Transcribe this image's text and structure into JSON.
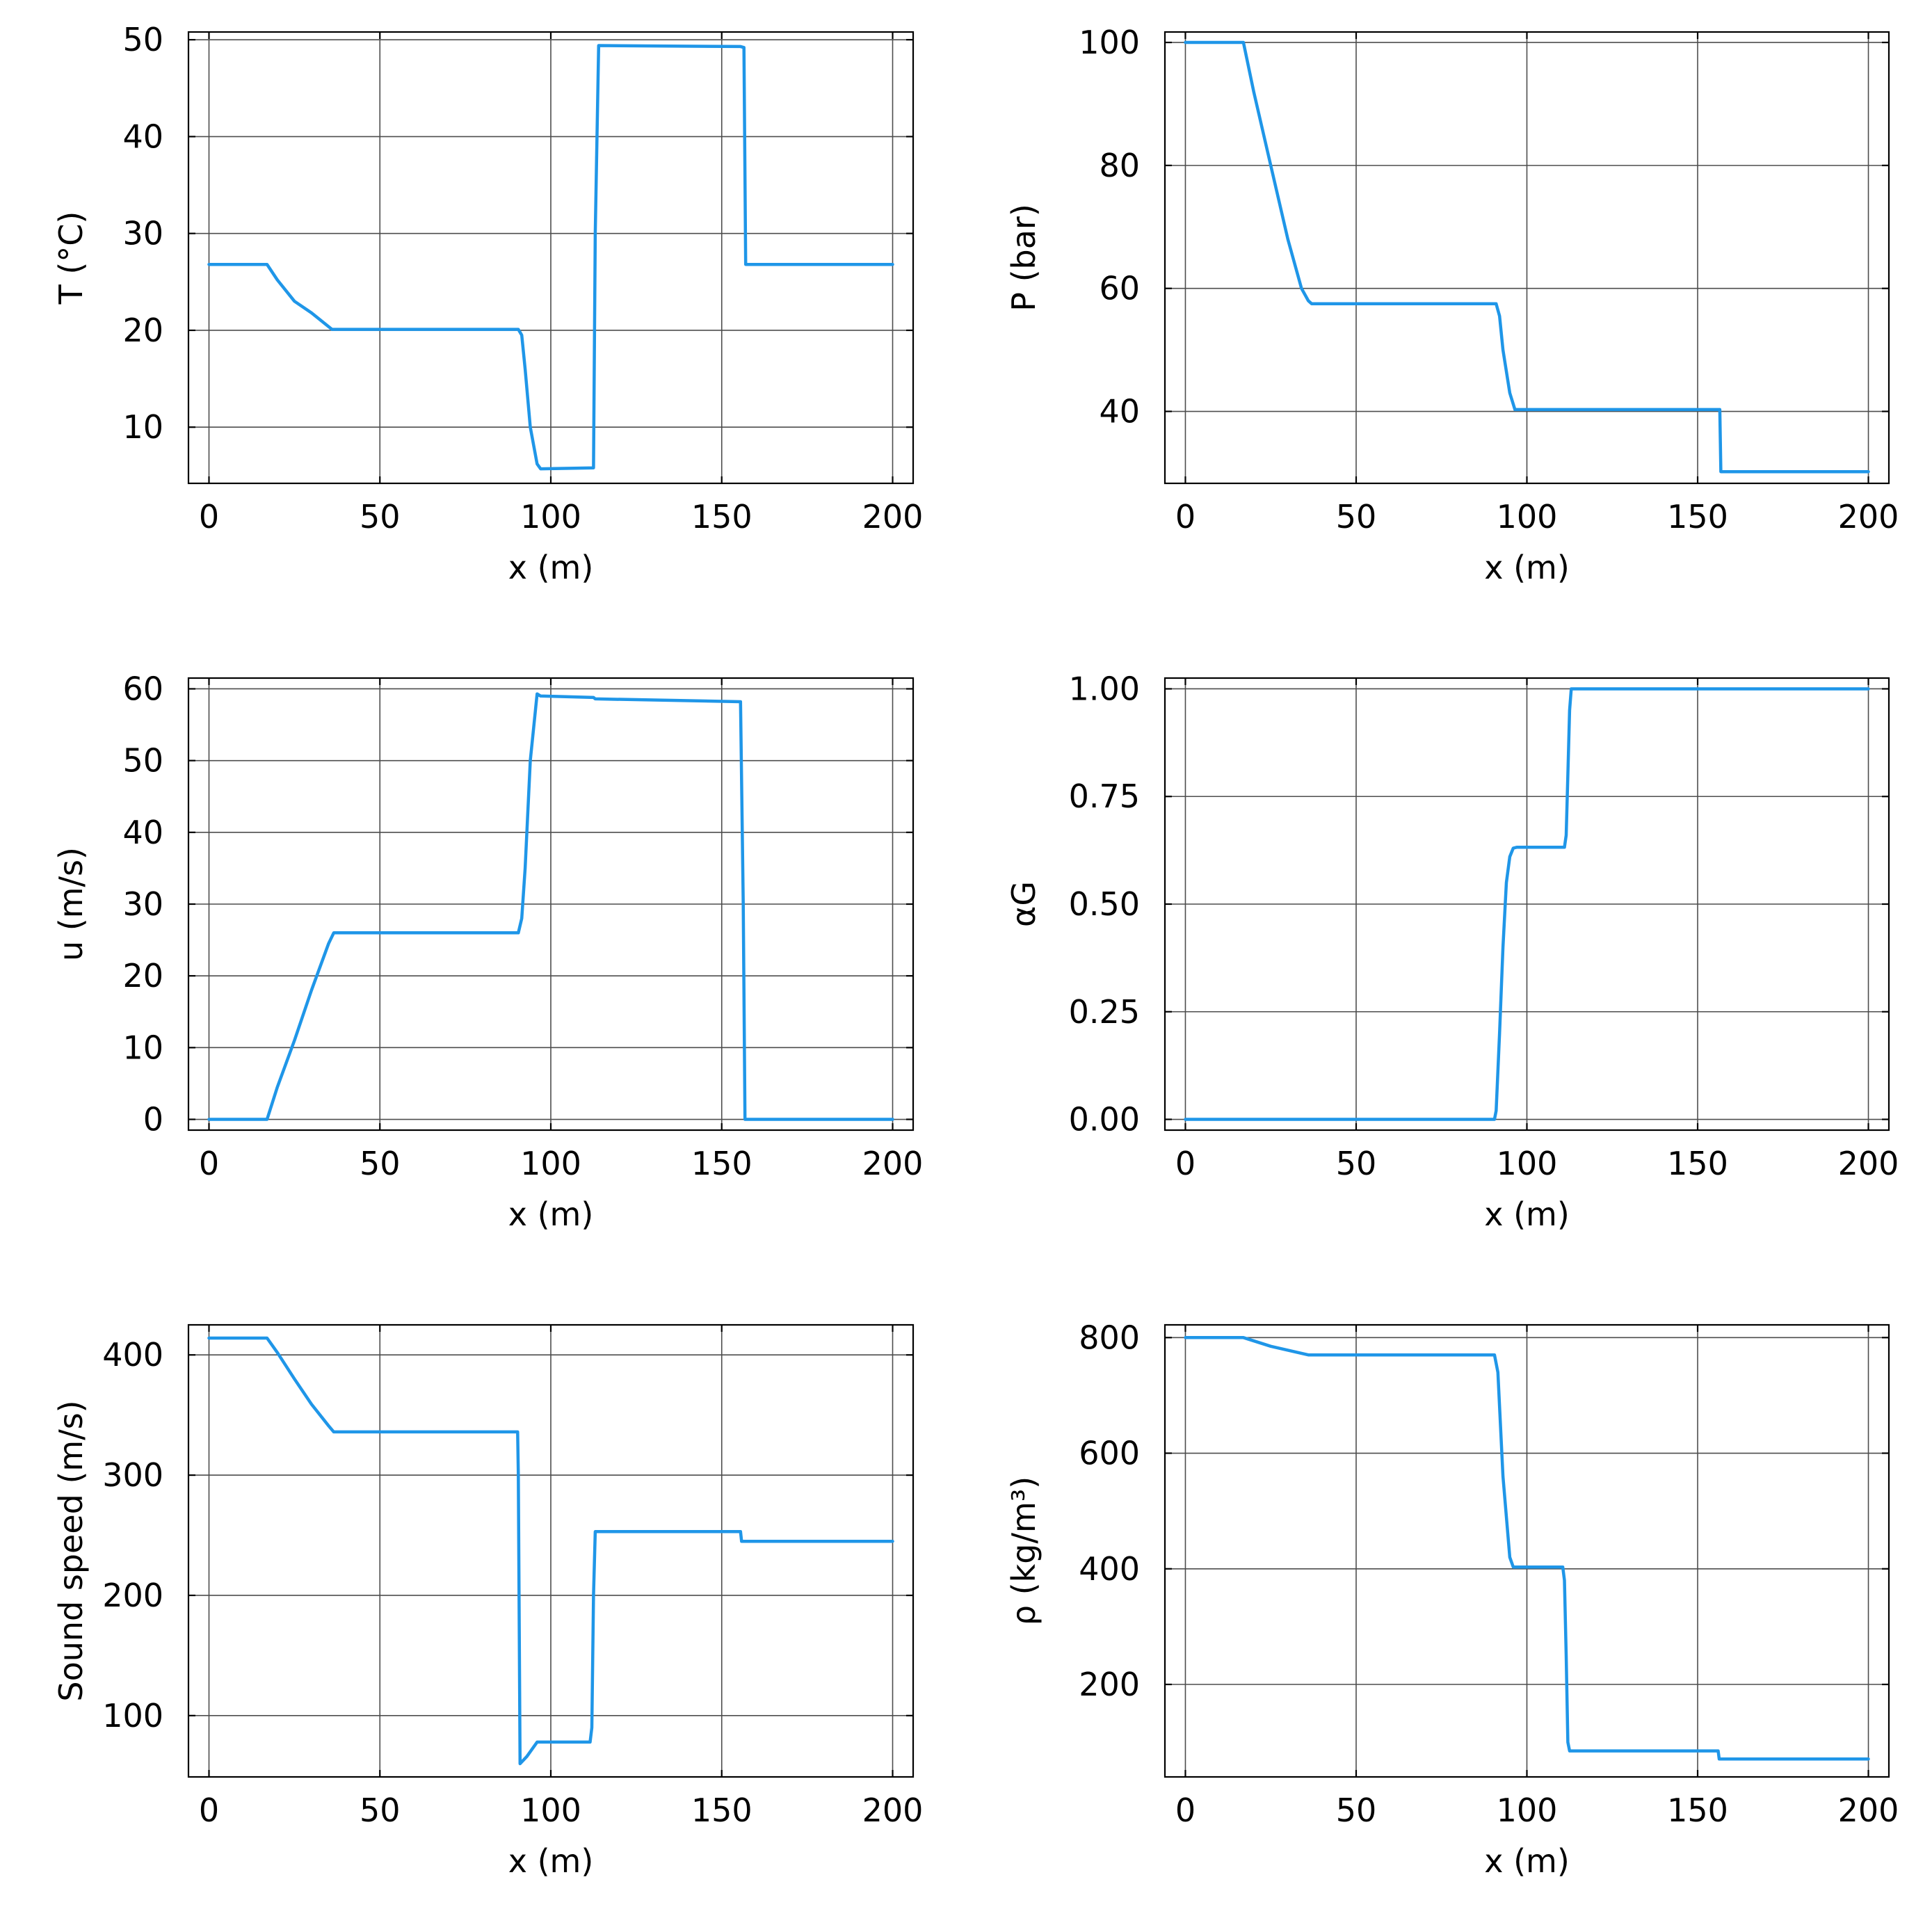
{
  "chart_data": [
    {
      "type": "line",
      "xlabel": "x (m)",
      "ylabel": "T (°C)",
      "xlim": [
        -6,
        206
      ],
      "ylim": [
        4.2,
        50.8
      ],
      "xticks": [
        0,
        50,
        100,
        150,
        200
      ],
      "xtick_labels": [
        "0",
        "50",
        "100",
        "150",
        "200"
      ],
      "yticks": [
        10,
        20,
        30,
        40,
        50
      ],
      "ytick_labels": [
        "10",
        "20",
        "30",
        "40",
        "50"
      ],
      "grid": true,
      "legend": "none",
      "series": [
        {
          "color": "#1f96e8",
          "x": [
            0,
            17,
            20,
            25,
            30,
            36,
            90.5,
            91.5,
            92.5,
            94,
            96,
            97,
            112.5,
            113,
            114,
            155.5,
            156.5,
            157,
            200
          ],
          "y": [
            26.8,
            26.8,
            25.2,
            23.0,
            21.8,
            20.1,
            20.1,
            19.5,
            16,
            10,
            6.2,
            5.7,
            5.8,
            30,
            49.4,
            49.3,
            49.2,
            26.8,
            26.8
          ]
        }
      ]
    },
    {
      "type": "line",
      "xlabel": "x (m)",
      "ylabel": "P (bar)",
      "xlim": [
        -6,
        206
      ],
      "ylim": [
        28.3,
        101.7
      ],
      "xticks": [
        0,
        50,
        100,
        150,
        200
      ],
      "xtick_labels": [
        "0",
        "50",
        "100",
        "150",
        "200"
      ],
      "yticks": [
        40,
        60,
        80,
        100
      ],
      "ytick_labels": [
        "40",
        "60",
        "80",
        "100"
      ],
      "grid": true,
      "legend": "none",
      "series": [
        {
          "color": "#1f96e8",
          "x": [
            0,
            17,
            20,
            25,
            30,
            34,
            36,
            37,
            91,
            92,
            93,
            95,
            96.5,
            156.5,
            156.8,
            200
          ],
          "y": [
            100,
            100,
            92,
            80,
            68,
            60,
            58,
            57.5,
            57.5,
            55.5,
            50,
            43,
            40.3,
            40.3,
            30.2,
            30.2
          ]
        }
      ]
    },
    {
      "type": "line",
      "xlabel": "x (m)",
      "ylabel": "u (m/s)",
      "xlim": [
        -6,
        206
      ],
      "ylim": [
        -1.5,
        61.5
      ],
      "xticks": [
        0,
        50,
        100,
        150,
        200
      ],
      "xtick_labels": [
        "0",
        "50",
        "100",
        "150",
        "200"
      ],
      "yticks": [
        0,
        10,
        20,
        30,
        40,
        50,
        60
      ],
      "ytick_labels": [
        "0",
        "10",
        "20",
        "30",
        "40",
        "50",
        "60"
      ],
      "grid": true,
      "legend": "none",
      "series": [
        {
          "color": "#1f96e8",
          "x": [
            0,
            17,
            20,
            25,
            30,
            35,
            36.5,
            90.5,
            91.5,
            92.5,
            94,
            96,
            97,
            112.5,
            113,
            155.5,
            156.3,
            156.8,
            200
          ],
          "y": [
            0,
            0,
            4.5,
            11,
            18,
            24.5,
            26,
            26,
            28,
            35,
            50,
            59.3,
            59.0,
            58.8,
            58.6,
            58.2,
            30,
            0,
            0
          ]
        }
      ]
    },
    {
      "type": "line",
      "xlabel": "x (m)",
      "ylabel": "αG",
      "xlim": [
        -6,
        206
      ],
      "ylim": [
        -0.025,
        1.025
      ],
      "xticks": [
        0,
        50,
        100,
        150,
        200
      ],
      "xtick_labels": [
        "0",
        "50",
        "100",
        "150",
        "200"
      ],
      "yticks": [
        0,
        0.25,
        0.5,
        0.75,
        1
      ],
      "ytick_labels": [
        "0.00",
        "0.25",
        "0.50",
        "0.75",
        "1.00"
      ],
      "grid": true,
      "legend": "none",
      "series": [
        {
          "color": "#1f96e8",
          "x": [
            0,
            90.5,
            91,
            92,
            93,
            94,
            95,
            96,
            97,
            111,
            111.5,
            112,
            112.5,
            113,
            200
          ],
          "y": [
            0,
            0,
            0.02,
            0.2,
            0.4,
            0.55,
            0.61,
            0.63,
            0.632,
            0.632,
            0.66,
            0.8,
            0.95,
            1,
            1
          ]
        }
      ]
    },
    {
      "type": "line",
      "xlabel": "x (m)",
      "ylabel": "Sound speed (m/s)",
      "xlim": [
        -6,
        206
      ],
      "ylim": [
        49,
        425
      ],
      "xticks": [
        0,
        50,
        100,
        150,
        200
      ],
      "xtick_labels": [
        "0",
        "50",
        "100",
        "150",
        "200"
      ],
      "yticks": [
        100,
        200,
        300,
        400
      ],
      "ytick_labels": [
        "100",
        "200",
        "300",
        "400"
      ],
      "grid": true,
      "legend": "none",
      "series": [
        {
          "color": "#1f96e8",
          "x": [
            0,
            17,
            20,
            25,
            30,
            35,
            36.5,
            90.3,
            90.5,
            91,
            93,
            96,
            97,
            111.5,
            112,
            112.5,
            113,
            155.5,
            155.8,
            200
          ],
          "y": [
            414,
            414,
            402,
            380,
            359,
            341,
            336,
            336,
            300,
            60,
            66,
            78,
            78,
            78,
            90,
            200,
            253,
            253,
            245,
            245
          ]
        }
      ]
    },
    {
      "type": "line",
      "xlabel": "x (m)",
      "ylabel": "ρ (kg/m³)",
      "xlim": [
        -6,
        206
      ],
      "ylim": [
        40,
        822
      ],
      "xticks": [
        0,
        50,
        100,
        150,
        200
      ],
      "xtick_labels": [
        "0",
        "50",
        "100",
        "150",
        "200"
      ],
      "yticks": [
        200,
        400,
        600,
        800
      ],
      "ytick_labels": [
        "200",
        "400",
        "600",
        "800"
      ],
      "grid": true,
      "legend": "none",
      "series": [
        {
          "color": "#1f96e8",
          "x": [
            0,
            17,
            25,
            36,
            37,
            90.5,
            91.5,
            93,
            95,
            96,
            97,
            110.5,
            111,
            111.5,
            112,
            112.5,
            156,
            156.3,
            200
          ],
          "y": [
            800,
            800,
            785,
            770,
            770,
            770,
            740,
            560,
            420,
            403,
            403,
            403,
            380,
            250,
            100,
            85,
            85,
            71,
            71
          ]
        }
      ]
    }
  ]
}
